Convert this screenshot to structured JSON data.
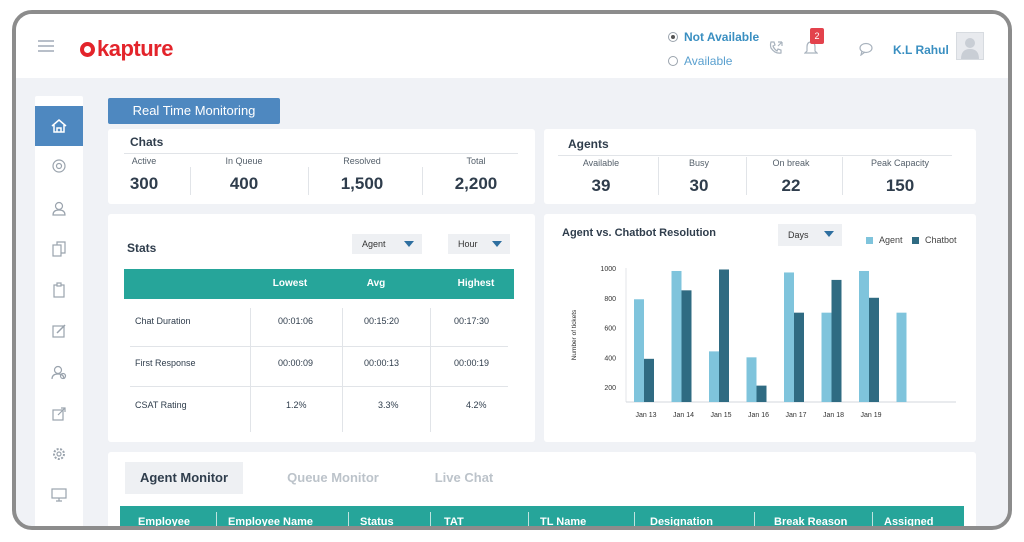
{
  "header": {
    "logo_text": "kapture",
    "status_options": [
      "Not Available",
      "Available"
    ],
    "selected_status": "Not Available",
    "notification_count": "2",
    "user_name": "K.L Rahul"
  },
  "page": {
    "title_button": "Real Time Monitoring"
  },
  "chats": {
    "title": "Chats",
    "metrics": [
      {
        "label": "Active",
        "value": "300"
      },
      {
        "label": "In Queue",
        "value": "400"
      },
      {
        "label": "Resolved",
        "value": "1,500"
      },
      {
        "label": "Total",
        "value": "2,200"
      }
    ]
  },
  "agents": {
    "title": "Agents",
    "metrics": [
      {
        "label": "Available",
        "value": "39"
      },
      {
        "label": "Busy",
        "value": "30"
      },
      {
        "label": "On break",
        "value": "22"
      },
      {
        "label": "Peak Capacity",
        "value": "150"
      }
    ]
  },
  "stats": {
    "title": "Stats",
    "filter1": "Agent",
    "filter2": "Hour",
    "columns": [
      "Lowest",
      "Avg",
      "Highest"
    ],
    "rows": [
      {
        "name": "Chat Duration",
        "values": [
          "00:01:06",
          "00:15:20",
          "00:17:30"
        ]
      },
      {
        "name": "First Response",
        "values": [
          "00:00:09",
          "00:00:13",
          "00:00:19"
        ]
      },
      {
        "name": "CSAT Rating",
        "values": [
          "1.2%",
          "3.3%",
          "4.2%"
        ]
      }
    ]
  },
  "chart_data": {
    "type": "bar",
    "title": "Agent vs. Chatbot Resolution",
    "filter": "Days",
    "ylabel": "Number of tickets",
    "xlabel": "",
    "ylim": [
      100,
      1000
    ],
    "yticks": [
      1000,
      800,
      600,
      400,
      200
    ],
    "categories": [
      "Jan 13",
      "Jan 14",
      "Jan 15",
      "Jan 16",
      "Jan 17",
      "Jan 18",
      "Jan 19"
    ],
    "legend_position": "top-right",
    "series": [
      {
        "name": "Agent",
        "color": "#7fc4dc",
        "values": [
          790,
          980,
          440,
          400,
          970,
          700,
          980
        ]
      },
      {
        "name": "Chatbot",
        "color": "#2f6b82",
        "values": [
          390,
          850,
          990,
          210,
          700,
          920,
          800
        ]
      }
    ],
    "extra_bar": {
      "series": "Agent",
      "value": 700
    }
  },
  "monitor": {
    "tabs": [
      "Agent Monitor",
      "Queue Monitor",
      "Live Chat"
    ],
    "active_tab": "Agent Monitor",
    "columns": [
      "Employee",
      "Employee Name",
      "Status",
      "TAT",
      "TL Name",
      "Designation",
      "Break Reason",
      "Assigned"
    ]
  },
  "colors": {
    "accent": "#4e88c0",
    "teal": "#26a59a",
    "brand": "#e3242b"
  },
  "icons": [
    "menu-icon",
    "phone-icon",
    "bell-icon",
    "chat-icon",
    "home-icon",
    "dashboard-icon",
    "user-icon",
    "documents-icon",
    "clipboard-icon",
    "edit-icon",
    "team-icon",
    "export-icon",
    "settings-icon",
    "monitor-icon"
  ]
}
